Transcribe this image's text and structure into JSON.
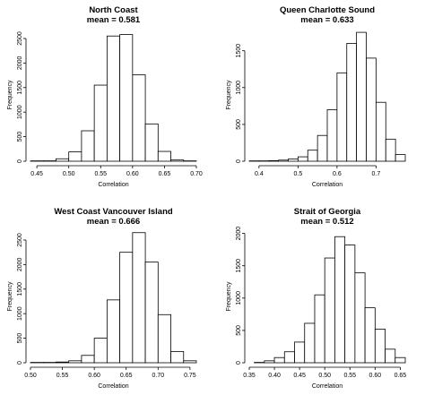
{
  "chart_data": [
    {
      "type": "bar",
      "title": "North Coast",
      "subtitle": "mean =  0.581",
      "xlabel": "Correlation",
      "ylabel": "Frequency",
      "bin_width": 0.02,
      "bin_starts": [
        0.44,
        0.46,
        0.48,
        0.5,
        0.52,
        0.54,
        0.56,
        0.58,
        0.6,
        0.62,
        0.64,
        0.66,
        0.68
      ],
      "values": [
        3,
        8,
        50,
        190,
        620,
        1550,
        2550,
        2580,
        1760,
        760,
        200,
        25,
        3
      ],
      "xlim": [
        0.44,
        0.7
      ],
      "ylim": [
        0,
        2700
      ],
      "xticks": [
        0.45,
        0.5,
        0.55,
        0.6,
        0.65,
        0.7
      ],
      "xtick_labels": [
        "0.45",
        "0.50",
        "0.55",
        "0.60",
        "0.65",
        "0.70"
      ],
      "yticks": [
        0,
        500,
        1000,
        1500,
        2000,
        2500
      ],
      "ytick_labels": [
        "0",
        "500",
        "1000",
        "1500",
        "2000",
        "2500"
      ]
    },
    {
      "type": "bar",
      "title": "Queen Charlotte Sound",
      "subtitle": "mean =  0.633",
      "xlabel": "Correlation",
      "ylabel": "Frequency",
      "bin_width": 0.025,
      "bin_starts": [
        0.375,
        0.4,
        0.425,
        0.45,
        0.475,
        0.5,
        0.525,
        0.55,
        0.575,
        0.6,
        0.625,
        0.65,
        0.675,
        0.7,
        0.725,
        0.75
      ],
      "values": [
        3,
        5,
        8,
        15,
        30,
        60,
        150,
        350,
        700,
        1200,
        1600,
        1750,
        1400,
        800,
        300,
        90
      ],
      "xlim": [
        0.375,
        0.775
      ],
      "ylim": [
        0,
        1800
      ],
      "xticks": [
        0.4,
        0.5,
        0.6,
        0.7
      ],
      "xtick_labels": [
        "0.4",
        "0.5",
        "0.6",
        "0.7"
      ],
      "yticks": [
        0,
        500,
        1000,
        1500
      ],
      "ytick_labels": [
        "0",
        "500",
        "1000",
        "1500"
      ]
    },
    {
      "type": "bar",
      "title": "West Coast Vancouver Island",
      "subtitle": "mean =  0.666",
      "xlabel": "Correlation",
      "ylabel": "Frequency",
      "bin_width": 0.02,
      "bin_starts": [
        0.5,
        0.52,
        0.54,
        0.56,
        0.58,
        0.6,
        0.62,
        0.64,
        0.66,
        0.68,
        0.7,
        0.72,
        0.74
      ],
      "values": [
        3,
        5,
        15,
        40,
        150,
        500,
        1280,
        2250,
        2650,
        2050,
        980,
        230,
        40
      ],
      "xlim": [
        0.5,
        0.76
      ],
      "ylim": [
        0,
        2700
      ],
      "xticks": [
        0.5,
        0.55,
        0.6,
        0.65,
        0.7,
        0.75
      ],
      "xtick_labels": [
        "0.50",
        "0.55",
        "0.60",
        "0.65",
        "0.70",
        "0.75"
      ],
      "yticks": [
        0,
        500,
        1000,
        1500,
        2000,
        2500
      ],
      "ytick_labels": [
        "0",
        "500",
        "1000",
        "1500",
        "2000",
        "2500"
      ]
    },
    {
      "type": "bar",
      "title": "Strait of Georgia",
      "subtitle": "mean =  0.512",
      "xlabel": "Correlation",
      "ylabel": "Frequency",
      "bin_width": 0.02,
      "bin_starts": [
        0.36,
        0.38,
        0.4,
        0.42,
        0.44,
        0.46,
        0.48,
        0.5,
        0.52,
        0.54,
        0.56,
        0.58,
        0.6,
        0.62,
        0.64
      ],
      "values": [
        5,
        30,
        80,
        170,
        320,
        610,
        1050,
        1620,
        1950,
        1820,
        1390,
        850,
        520,
        210,
        80
      ],
      "xlim": [
        0.35,
        0.66
      ],
      "ylim": [
        0,
        2050
      ],
      "xticks": [
        0.35,
        0.4,
        0.45,
        0.5,
        0.55,
        0.6,
        0.65
      ],
      "xtick_labels": [
        "0.35",
        "0.40",
        "0.45",
        "0.50",
        "0.55",
        "0.60",
        "0.65"
      ],
      "yticks": [
        0,
        500,
        1000,
        1500,
        2000
      ],
      "ytick_labels": [
        "0",
        "500",
        "1000",
        "1500",
        "2000"
      ]
    }
  ]
}
